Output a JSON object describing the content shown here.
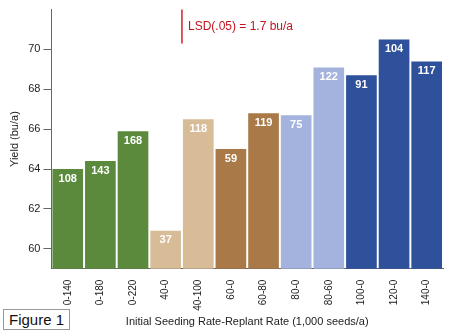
{
  "chart_data": {
    "type": "bar",
    "x_label": "Initial Seeding Rate-Replant Rate (1,000 seeds/a)",
    "y_label": "Yield (bu/a)",
    "figure_label": "Figure 1",
    "annotation": "LSD(.05) = 1.7 bu/a",
    "lsd": 1.7,
    "categories": [
      "0-140",
      "0-180",
      "0-220",
      "40-0",
      "40-100",
      "60-0",
      "60-80",
      "80-0",
      "80-60",
      "100-0",
      "120-0",
      "140-0"
    ],
    "values": [
      64.0,
      64.4,
      65.9,
      60.9,
      66.5,
      65.0,
      66.8,
      66.7,
      69.1,
      68.7,
      70.5,
      69.4
    ],
    "bar_numbers": [
      108,
      143,
      168,
      37,
      118,
      59,
      119,
      75,
      122,
      91,
      104,
      117
    ],
    "colors": [
      "#5b8a3c",
      "#5b8a3c",
      "#5b8a3c",
      "#d8bc98",
      "#d8bc98",
      "#a97a48",
      "#a97a48",
      "#a3b3dd",
      "#a3b3dd",
      "#2f519c",
      "#2f519c",
      "#2f519c"
    ],
    "ylim": [
      59,
      72
    ],
    "yticks": [
      60,
      62,
      64,
      66,
      68,
      70
    ],
    "grid": false
  }
}
